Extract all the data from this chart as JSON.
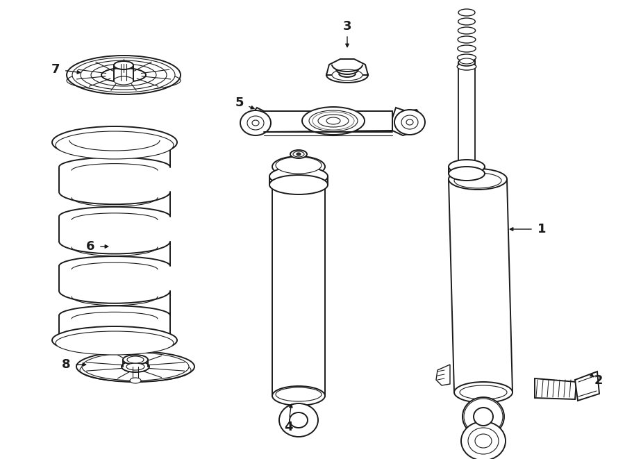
{
  "bg_color": "#ffffff",
  "line_color": "#1a1a1a",
  "lw": 1.4,
  "fig_w": 9.0,
  "fig_h": 6.61,
  "dpi": 100
}
